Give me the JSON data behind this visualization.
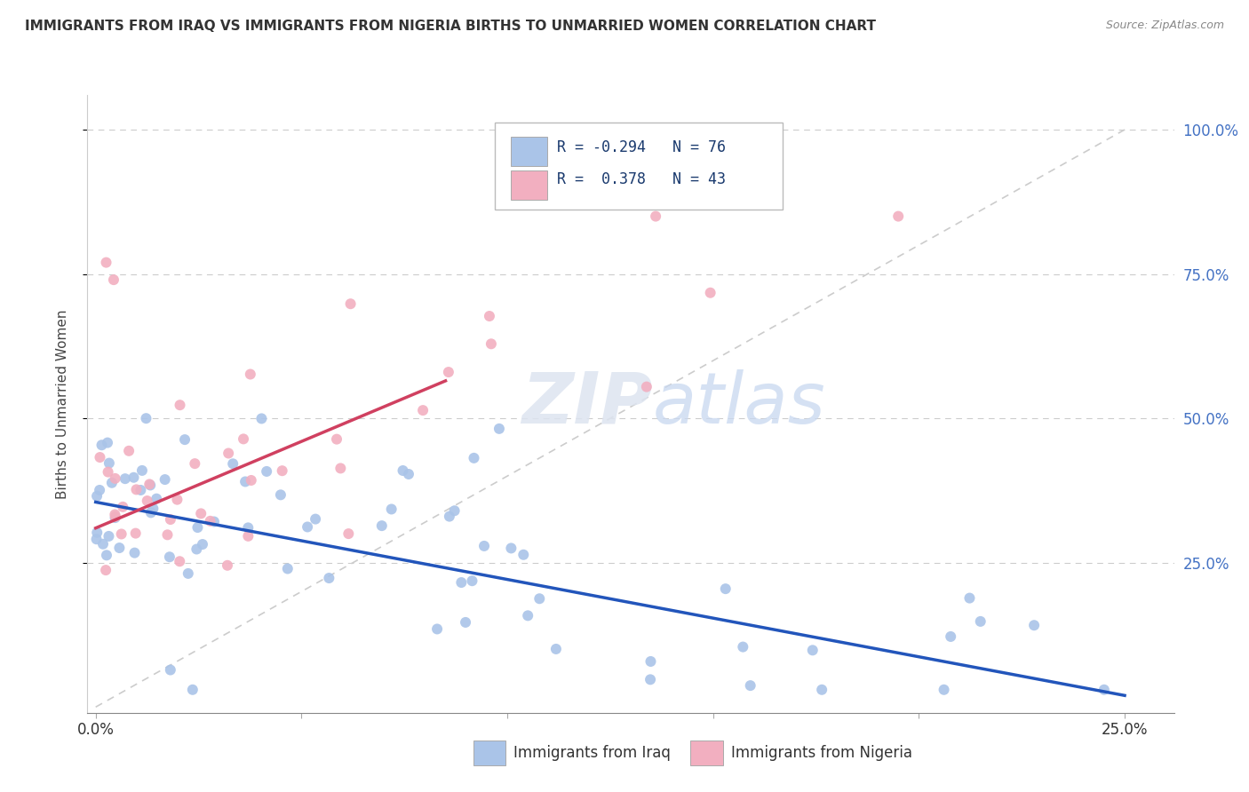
{
  "title": "IMMIGRANTS FROM IRAQ VS IMMIGRANTS FROM NIGERIA BIRTHS TO UNMARRIED WOMEN CORRELATION CHART",
  "source": "Source: ZipAtlas.com",
  "ylabel": "Births to Unmarried Women",
  "color_iraq": "#aac4e8",
  "color_nigeria": "#f2afc0",
  "color_iraq_line": "#2255bb",
  "color_nigeria_line": "#d04060",
  "color_diag": "#cccccc",
  "watermark_zip": "ZIP",
  "watermark_atlas": "atlas",
  "legend_text1": "R = -0.294   N = 76",
  "legend_text2": "R =  0.378   N = 43",
  "iraq_trend_x0": 0.0,
  "iraq_trend_x1": 0.25,
  "iraq_trend_y0": 0.355,
  "iraq_trend_y1": 0.02,
  "nigeria_trend_x0": 0.0,
  "nigeria_trend_x1": 0.085,
  "nigeria_trend_y0": 0.31,
  "nigeria_trend_y1": 0.565,
  "x_min": -0.002,
  "x_max": 0.262,
  "y_min": -0.01,
  "y_max": 1.06
}
